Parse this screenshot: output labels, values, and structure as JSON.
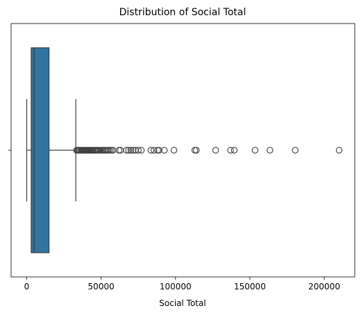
{
  "chart_data": {
    "type": "box",
    "orientation": "horizontal",
    "title": "Distribution of Social Total",
    "xlabel": "Social Total",
    "ylabel": "",
    "xlim": [
      -10500,
      220500
    ],
    "xticks": [
      0,
      50000,
      100000,
      150000,
      200000
    ],
    "xtick_labels": [
      "0",
      "50000",
      "100000",
      "150000",
      "200000"
    ],
    "grid": false,
    "box_color": "#3274a1",
    "line_color": "#3d3d3d",
    "series": [
      {
        "min": 0,
        "q1": 3000,
        "median": 5000,
        "q3": 15000,
        "max": 33000,
        "outliers": [
          33500,
          34200,
          34800,
          35500,
          36200,
          36900,
          37500,
          38200,
          38800,
          39500,
          40200,
          40800,
          41500,
          42200,
          42900,
          43600,
          44300,
          45000,
          45800,
          46500,
          47200,
          48000,
          48800,
          49600,
          50500,
          51300,
          52200,
          53000,
          54000,
          55000,
          56000,
          57000,
          58000,
          62000,
          63000,
          67000,
          68500,
          70000,
          71500,
          73000,
          75000,
          77000,
          83500,
          85500,
          88000,
          89000,
          92500,
          99000,
          113000,
          114000,
          127000,
          137000,
          139500,
          153500,
          163500,
          180500,
          210000
        ]
      }
    ]
  }
}
